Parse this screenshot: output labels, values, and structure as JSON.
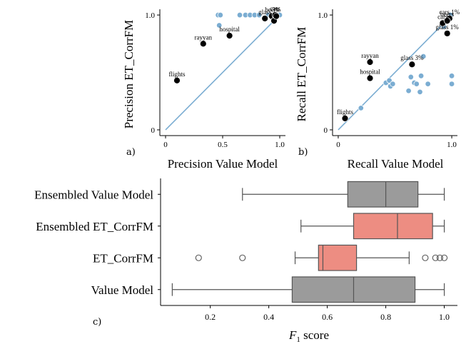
{
  "panel_labels": {
    "a": "a)",
    "b": "b)",
    "c": "c)"
  },
  "chart_data": [
    {
      "type": "scatter",
      "xlabel": "Precision Value Model",
      "ylabel": "Precision ET_CorrFM",
      "xlim": [
        -0.05,
        1.05
      ],
      "ylim": [
        -0.05,
        1.05
      ],
      "xticks": [
        "0",
        "0.5",
        "1.0"
      ],
      "xtick_values": [
        0,
        0.5,
        1.0
      ],
      "yticks": [
        "0",
        "1.0"
      ],
      "ytick_values": [
        0,
        1.0
      ],
      "diagonal": true,
      "colors": {
        "highlight": "#000000",
        "other": "#7badd2",
        "diagonal": "#7badd2"
      },
      "highlighted": [
        {
          "label": "flights",
          "x": 0.1,
          "y": 0.43
        },
        {
          "label": "rayyan",
          "x": 0.33,
          "y": 0.75
        },
        {
          "label": "hospital",
          "x": 0.56,
          "y": 0.82
        },
        {
          "label": "glass",
          "x": 0.87,
          "y": 0.97
        },
        {
          "label": "beers",
          "x": 0.93,
          "y": 0.99
        },
        {
          "label": "cars",
          "x": 0.96,
          "y": 1.0
        },
        {
          "label": "tax",
          "x": 0.95,
          "y": 0.95
        },
        {
          "label": "3%",
          "x": 0.97,
          "y": 0.99
        }
      ],
      "others": [
        {
          "x": 0.46,
          "y": 1.0
        },
        {
          "x": 0.48,
          "y": 1.0
        },
        {
          "x": 0.47,
          "y": 0.91
        },
        {
          "x": 0.65,
          "y": 1.0
        },
        {
          "x": 0.7,
          "y": 1.0
        },
        {
          "x": 0.74,
          "y": 1.0
        },
        {
          "x": 0.78,
          "y": 1.0
        },
        {
          "x": 0.82,
          "y": 1.0
        },
        {
          "x": 0.9,
          "y": 1.0
        },
        {
          "x": 1.0,
          "y": 1.0
        }
      ]
    },
    {
      "type": "scatter",
      "xlabel": "Recall Value Model",
      "ylabel": "Recall ET_CorrFM",
      "xlim": [
        -0.05,
        1.05
      ],
      "ylim": [
        -0.05,
        1.05
      ],
      "xticks": [
        "0",
        "1.0"
      ],
      "xtick_values": [
        0,
        1.0
      ],
      "yticks": [
        "0",
        "1.0"
      ],
      "ytick_values": [
        0,
        1.0
      ],
      "diagonal": true,
      "colors": {
        "highlight": "#000000",
        "other": "#7badd2",
        "diagonal": "#7badd2"
      },
      "highlighted": [
        {
          "label": "flights",
          "x": 0.06,
          "y": 0.1
        },
        {
          "label": "rayyan",
          "x": 0.28,
          "y": 0.59
        },
        {
          "label": "hospital",
          "x": 0.28,
          "y": 0.45
        },
        {
          "label": "glass 3%",
          "x": 0.65,
          "y": 0.57
        },
        {
          "label": "cars",
          "x": 0.92,
          "y": 0.93
        },
        {
          "label": "glass 1%",
          "x": 0.96,
          "y": 0.84
        },
        {
          "label": "cars 1%",
          "x": 0.98,
          "y": 0.97
        },
        {
          "label": "beers",
          "x": 0.96,
          "y": 0.95
        }
      ],
      "others": [
        {
          "x": 0.2,
          "y": 0.19
        },
        {
          "x": 0.42,
          "y": 0.41
        },
        {
          "x": 0.45,
          "y": 0.43
        },
        {
          "x": 0.46,
          "y": 0.38
        },
        {
          "x": 0.48,
          "y": 0.4
        },
        {
          "x": 0.62,
          "y": 0.34
        },
        {
          "x": 0.64,
          "y": 0.46
        },
        {
          "x": 0.67,
          "y": 0.41
        },
        {
          "x": 0.69,
          "y": 0.4
        },
        {
          "x": 0.72,
          "y": 0.33
        },
        {
          "x": 0.73,
          "y": 0.47
        },
        {
          "x": 0.75,
          "y": 0.64
        },
        {
          "x": 0.79,
          "y": 0.4
        },
        {
          "x": 0.93,
          "y": 0.9
        },
        {
          "x": 1.0,
          "y": 0.47
        },
        {
          "x": 1.0,
          "y": 0.4
        },
        {
          "x": 0.99,
          "y": 1.0
        }
      ]
    },
    {
      "type": "box",
      "xlabel": "F1 score",
      "xlim": [
        0.03,
        1.045
      ],
      "xticks": [
        "0.2",
        "0.4",
        "0.6",
        "0.8",
        "1.0"
      ],
      "xtick_values": [
        0.2,
        0.4,
        0.6,
        0.8,
        1.0
      ],
      "categories": [
        "Ensembled Value Model",
        "Ensembled ET_CorrFM",
        "ET_CorrFM",
        "Value Model"
      ],
      "boxes": [
        {
          "name": "Ensembled Value Model",
          "color": "#9b9b9b",
          "whisker_low": 0.31,
          "q1": 0.67,
          "median": 0.8,
          "q3": 0.91,
          "whisker_high": 1.0,
          "outliers": []
        },
        {
          "name": "Ensembled ET_CorrFM",
          "color": "#ed8d82",
          "whisker_low": 0.51,
          "q1": 0.69,
          "median": 0.84,
          "q3": 0.96,
          "whisker_high": 1.0,
          "outliers": []
        },
        {
          "name": "ET_CorrFM",
          "color": "#ed8d82",
          "whisker_low": 0.49,
          "q1": 0.57,
          "median": 0.585,
          "q3": 0.7,
          "whisker_high": 0.88,
          "outliers": [
            0.16,
            0.31,
            0.935,
            0.97,
            0.985,
            1.0
          ]
        },
        {
          "name": "Value Model",
          "color": "#9b9b9b",
          "whisker_low": 0.07,
          "q1": 0.48,
          "median": 0.69,
          "q3": 0.9,
          "whisker_high": 1.0,
          "outliers": []
        }
      ]
    }
  ]
}
